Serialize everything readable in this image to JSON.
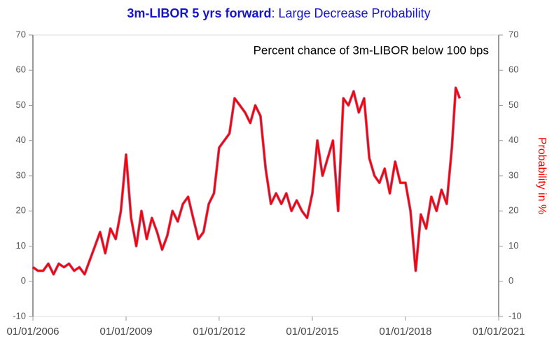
{
  "chart_data": {
    "type": "line",
    "title": "3m-LIBOR 5 yrs forward",
    "subtitle": ": Large Decrease Probability",
    "annotation": "Percent chance of 3m-LIBOR below 100 bps",
    "y2_label": "Probability in %",
    "x": [
      "2006-01-01",
      "2006-03-01",
      "2006-05-01",
      "2006-07-01",
      "2006-09-01",
      "2006-11-01",
      "2007-01-01",
      "2007-03-01",
      "2007-05-01",
      "2007-07-01",
      "2007-09-01",
      "2007-11-01",
      "2008-01-01",
      "2008-03-01",
      "2008-05-01",
      "2008-07-01",
      "2008-09-01",
      "2008-11-01",
      "2009-01-01",
      "2009-03-01",
      "2009-05-01",
      "2009-07-01",
      "2009-09-01",
      "2009-11-01",
      "2010-01-01",
      "2010-03-01",
      "2010-05-01",
      "2010-07-01",
      "2010-09-01",
      "2010-11-01",
      "2011-01-01",
      "2011-03-01",
      "2011-05-01",
      "2011-07-01",
      "2011-09-01",
      "2011-11-01",
      "2012-01-01",
      "2012-03-01",
      "2012-05-01",
      "2012-07-01",
      "2012-09-01",
      "2012-11-01",
      "2013-01-01",
      "2013-03-01",
      "2013-05-01",
      "2013-07-01",
      "2013-09-01",
      "2013-11-01",
      "2014-01-01",
      "2014-03-01",
      "2014-05-01",
      "2014-07-01",
      "2014-09-01",
      "2014-11-01",
      "2015-01-01",
      "2015-03-01",
      "2015-05-01",
      "2015-07-01",
      "2015-09-01",
      "2015-11-01",
      "2016-01-01",
      "2016-03-01",
      "2016-05-01",
      "2016-07-01",
      "2016-09-01",
      "2016-11-01",
      "2017-01-01",
      "2017-03-01",
      "2017-05-01",
      "2017-07-01",
      "2017-09-01",
      "2017-11-01",
      "2018-01-01",
      "2018-03-01",
      "2018-05-01",
      "2018-07-01",
      "2018-09-01",
      "2018-11-01",
      "2019-01-01",
      "2019-03-01",
      "2019-05-01",
      "2019-07-01",
      "2019-08-15",
      "2019-10-01"
    ],
    "series": [
      {
        "name": "Probability",
        "color": "#ff0000",
        "axis": "y2",
        "values": [
          4,
          3,
          3,
          5,
          2,
          5,
          4,
          5,
          3,
          4,
          2,
          6,
          10,
          14,
          8,
          15,
          12,
          20,
          36,
          18,
          10,
          20,
          12,
          18,
          14,
          9,
          13,
          20,
          17,
          22,
          24,
          18,
          12,
          14,
          22,
          25,
          38,
          40,
          42,
          52,
          50,
          48,
          45,
          50,
          47,
          32,
          22,
          25,
          22,
          25,
          20,
          23,
          20,
          18,
          25,
          40,
          30,
          35,
          40,
          20,
          52,
          50,
          54,
          48,
          52,
          35,
          30,
          28,
          32,
          25,
          34,
          28,
          28,
          20,
          3,
          19,
          15,
          24,
          20,
          26,
          22,
          38,
          55,
          52
        ]
      }
    ],
    "xlim": [
      "2006-01-01",
      "2021-01-01"
    ],
    "xticks": [
      {
        "value": "2006-01-01",
        "label": "01/01/2006"
      },
      {
        "value": "2009-01-01",
        "label": "01/01/2009"
      },
      {
        "value": "2012-01-01",
        "label": "01/01/2012"
      },
      {
        "value": "2015-01-01",
        "label": "01/01/2015"
      },
      {
        "value": "2018-01-01",
        "label": "01/01/2018"
      },
      {
        "value": "2021-01-01",
        "label": "01/01/2021"
      }
    ],
    "ylim": [
      -10,
      70
    ],
    "yticks": [
      -10,
      0,
      10,
      20,
      30,
      40,
      50,
      60,
      70
    ],
    "y2lim": [
      -10,
      70
    ],
    "y2ticks": [
      -10,
      0,
      10,
      20,
      30,
      40,
      50,
      60,
      70
    ]
  }
}
